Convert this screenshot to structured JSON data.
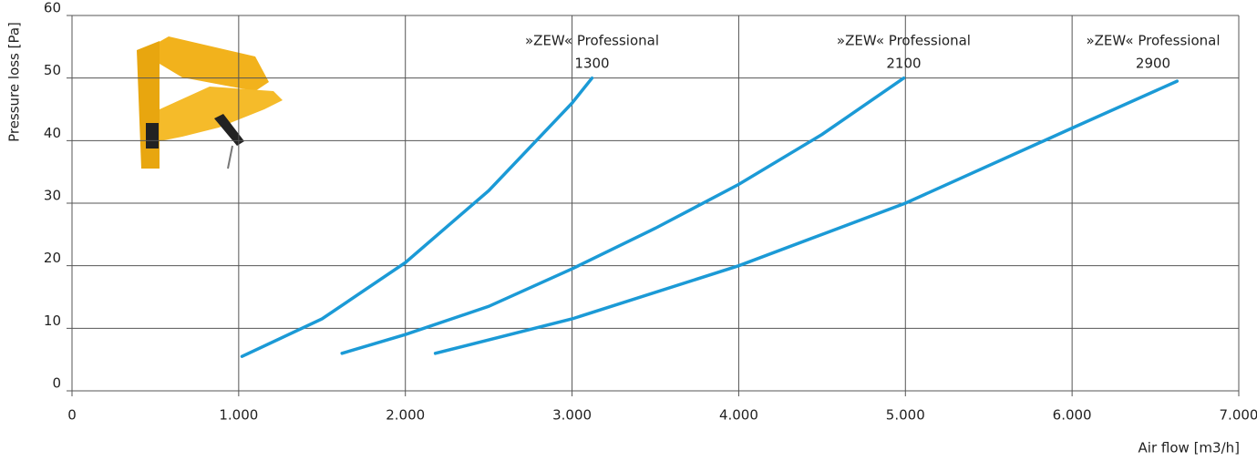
{
  "chart_data": {
    "type": "line",
    "xlabel": "Air flow [m3/h]",
    "ylabel": "Pressure loss [Pa]",
    "xlim": [
      0,
      7000
    ],
    "ylim": [
      0,
      60
    ],
    "xticks": [
      0,
      {
        "value": 1000,
        "label": "1.000"
      },
      {
        "value": 2000,
        "label": "2.000"
      },
      {
        "value": 3000,
        "label": "3.000"
      },
      {
        "value": 4000,
        "label": "4.000"
      },
      {
        "value": 5000,
        "label": "5.000"
      },
      {
        "value": 6000,
        "label": "6.000"
      },
      {
        "value": 7000,
        "label": "7.000"
      }
    ],
    "yticks": [
      0,
      10,
      20,
      30,
      40,
      50,
      60
    ],
    "grid": true,
    "series": [
      {
        "label": [
          "»ZEW« Professional",
          "1300"
        ],
        "color": "#1b9ad6",
        "x": [
          1020,
          1500,
          2000,
          2500,
          3000,
          3120
        ],
        "values": [
          5.5,
          11.5,
          20.5,
          32,
          46,
          50
        ]
      },
      {
        "label": [
          "»ZEW« Professional",
          "2100"
        ],
        "color": "#1b9ad6",
        "x": [
          1620,
          2000,
          2500,
          3000,
          3500,
          4000,
          4500,
          4990
        ],
        "values": [
          6,
          9,
          13.5,
          19.5,
          26,
          33,
          41,
          50
        ]
      },
      {
        "label": [
          "»ZEW« Professional",
          "2900"
        ],
        "color": "#1b9ad6",
        "x": [
          2180,
          3000,
          4000,
          5000,
          6000,
          6630
        ],
        "values": [
          6,
          11.5,
          20,
          30,
          42,
          49.5
        ]
      }
    ]
  }
}
